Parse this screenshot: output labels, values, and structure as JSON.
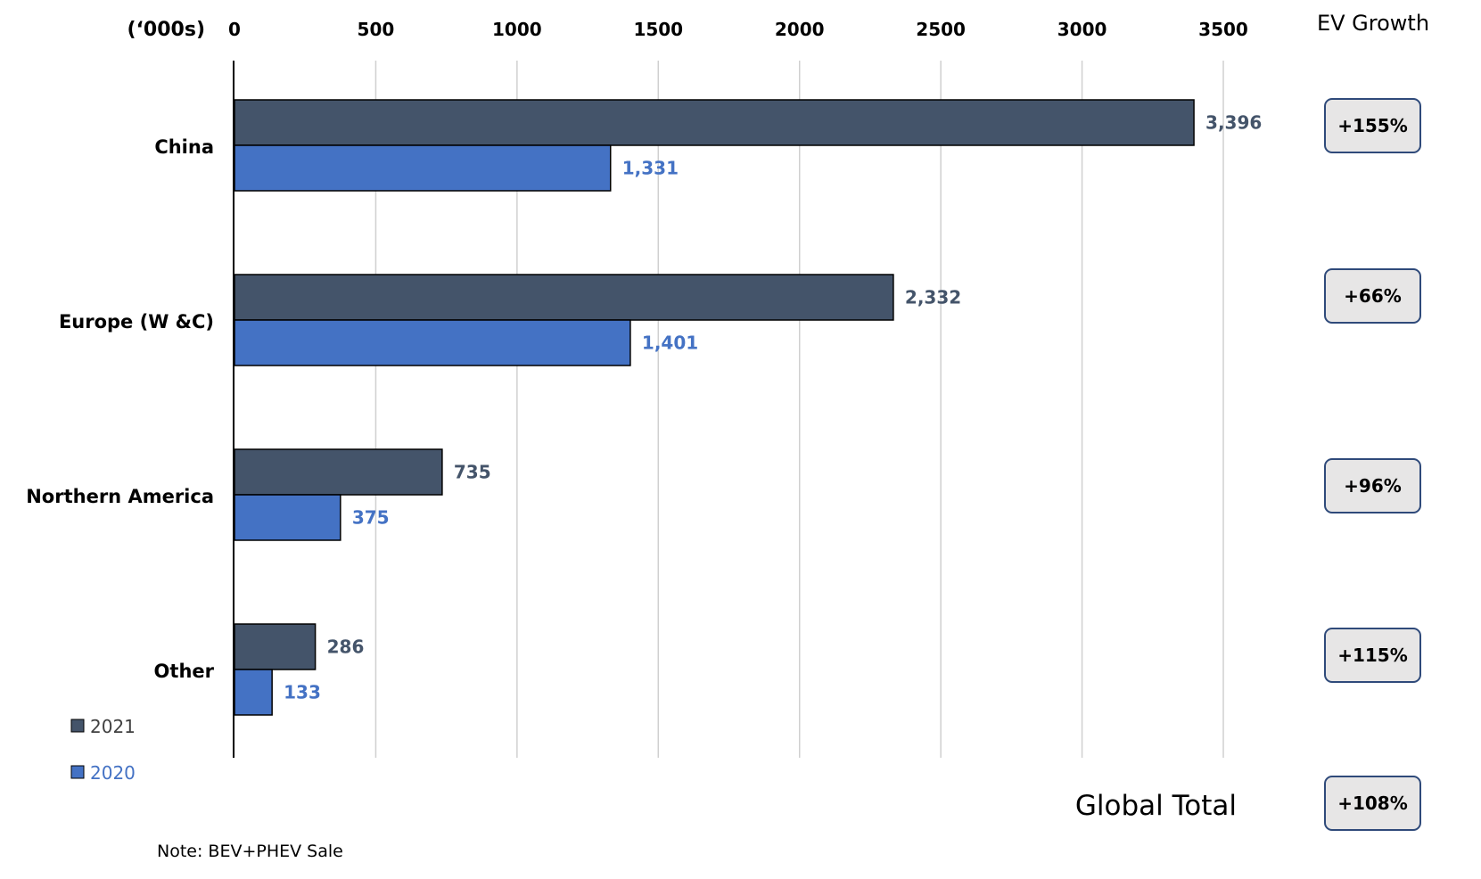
{
  "chart_data": {
    "type": "bar",
    "orientation": "horizontal",
    "unit_label": "(‘000s)",
    "xlim": [
      0,
      3500
    ],
    "x_ticks": [
      "0",
      "500",
      "1000",
      "1500",
      "2000",
      "2500",
      "3000",
      "3500"
    ],
    "grid": true,
    "categories": [
      "China",
      "Europe (W &C)",
      "Northern America",
      "Other"
    ],
    "series": [
      {
        "name": "2021",
        "color": "#44546A",
        "values": [
          3396,
          2332,
          735,
          286
        ],
        "labels": [
          "3,396",
          "2,332",
          "735",
          "286"
        ]
      },
      {
        "name": "2020",
        "color": "#4472C4",
        "values": [
          1331,
          1401,
          375,
          133
        ],
        "labels": [
          "1,331",
          "1,401",
          "375",
          "133"
        ]
      }
    ],
    "legend_position": "bottom-left",
    "growth_header": "EV Growth",
    "growth": [
      "+155%",
      "+66%",
      "+96%",
      "+115%"
    ],
    "global_total_label": "Global Total",
    "global_total_growth": "+108%",
    "note": "Note: BEV+PHEV Sale"
  }
}
